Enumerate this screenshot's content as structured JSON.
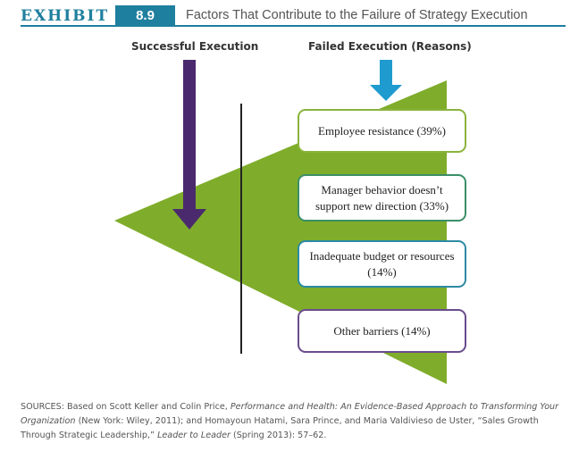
{
  "header": {
    "exhibit_word": "EXHIBIT",
    "exhibit_number": "8.9",
    "title": "Factors That Contribute to the Failure of Strategy Execution"
  },
  "columns": {
    "successful": "Successful Execution",
    "failed": "Failed Execution (Reasons)"
  },
  "reasons": [
    {
      "text": "Employee resistance (39%)",
      "percent": 39
    },
    {
      "text": "Manager behavior doesn’t support new direction (33%)",
      "percent": 33
    },
    {
      "text": "Inadequate budget or resources (14%)",
      "percent": 14
    },
    {
      "text": "Other barriers (14%)",
      "percent": 14
    }
  ],
  "sources": {
    "prefix": "SOURCES: Based on Scott Keller and Colin Price, ",
    "book_title": "Performance and Health: An Evidence-Based Approach to Transforming Your Organization",
    "mid": " (New York: Wiley, 2011); and Homayoun Hatami, Sara Prince, and Maria Valdivieso de Uster, “Sales Growth Through Strategic Leadership,” ",
    "journal": "Leader to Leader",
    "suffix": " (Spring 2013): 57–62."
  },
  "colors": {
    "accent": "#1f7f9e",
    "triangle_green": "#7fad2b",
    "arrow_purple": "#4a2a6d",
    "arrow_blue": "#1f9bcf",
    "box_borders": [
      "#8ab33c",
      "#3b8f67",
      "#2d8aa3",
      "#6a4c8c"
    ]
  }
}
